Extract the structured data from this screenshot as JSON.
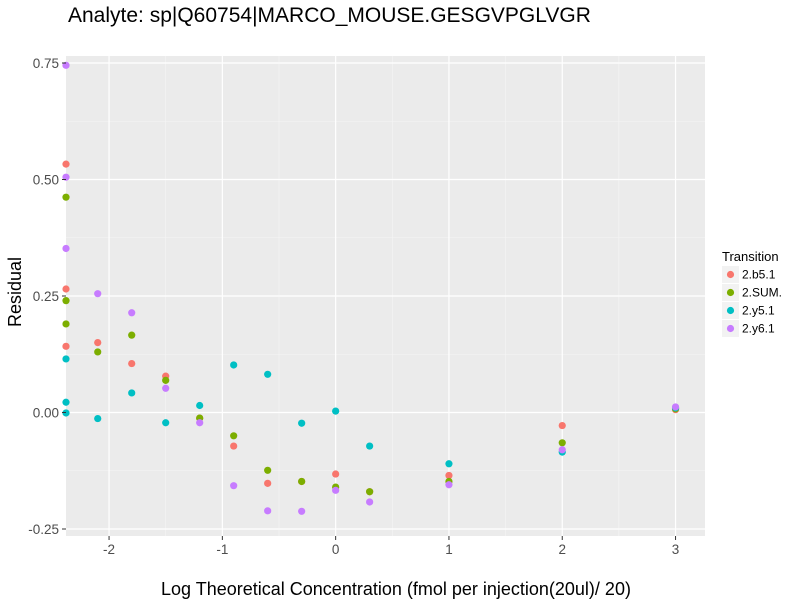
{
  "chart_data": {
    "type": "scatter",
    "title": "Analyte: sp|Q60754|MARCO_MOUSE.GESGVPGLVGR",
    "xlabel": "Log Theoretical Concentration (fmol per injection(20ul)/ 20)",
    "ylabel": "Residual",
    "xlim": [
      -2.38,
      3.26
    ],
    "ylim": [
      -0.265,
      0.765
    ],
    "x_ticks": [
      -2,
      -1,
      0,
      1,
      2,
      3
    ],
    "x_tick_labels": [
      "-2",
      "-1",
      "0",
      "1",
      "2",
      "3"
    ],
    "y_ticks": [
      -0.25,
      0,
      0.25,
      0.5,
      0.75
    ],
    "y_tick_labels": [
      "-0.25",
      "0.00",
      "0.25",
      "0.50",
      "0.75"
    ],
    "grid": true,
    "legend": {
      "title": "Transition",
      "placement": "right"
    },
    "series": [
      {
        "name": "2.b5.1",
        "color": "#F8766D",
        "points": [
          [
            -2.38,
            0.533
          ],
          [
            -2.38,
            0.265
          ],
          [
            -2.38,
            0.142
          ],
          [
            -2.1,
            0.15
          ],
          [
            -1.8,
            0.105
          ],
          [
            -1.5,
            0.078
          ],
          [
            -1.2,
            -0.012
          ],
          [
            -0.9,
            -0.072
          ],
          [
            -0.6,
            -0.152
          ],
          [
            -0.3,
            -0.148
          ],
          [
            0,
            -0.132
          ],
          [
            0.3,
            -0.17
          ],
          [
            1,
            -0.135
          ],
          [
            2,
            -0.028
          ],
          [
            3,
            0.006
          ]
        ]
      },
      {
        "name": "2.SUM.",
        "color": "#7CAE00",
        "points": [
          [
            -2.38,
            0.462
          ],
          [
            -2.38,
            0.24
          ],
          [
            -2.38,
            0.19
          ],
          [
            -2.1,
            0.13
          ],
          [
            -1.8,
            0.166
          ],
          [
            -1.5,
            0.069
          ],
          [
            -1.2,
            -0.012
          ],
          [
            -0.9,
            -0.05
          ],
          [
            -0.6,
            -0.124
          ],
          [
            -0.3,
            -0.148
          ],
          [
            0,
            -0.16
          ],
          [
            0.3,
            -0.17
          ],
          [
            1,
            -0.148
          ],
          [
            2,
            -0.065
          ],
          [
            3,
            0.008
          ]
        ]
      },
      {
        "name": "2.y5.1",
        "color": "#00BFC4",
        "points": [
          [
            -2.38,
            0.115
          ],
          [
            -2.38,
            0.022
          ],
          [
            -2.38,
            -0.001
          ],
          [
            -2.1,
            -0.013
          ],
          [
            -1.8,
            0.042
          ],
          [
            -1.5,
            -0.022
          ],
          [
            -1.2,
            0.015
          ],
          [
            -0.9,
            0.102
          ],
          [
            -0.6,
            0.082
          ],
          [
            -0.3,
            -0.023
          ],
          [
            0,
            0.003
          ],
          [
            0.3,
            -0.072
          ],
          [
            1,
            -0.11
          ],
          [
            2,
            -0.085
          ],
          [
            3,
            0.01
          ]
        ]
      },
      {
        "name": "2.y6.1",
        "color": "#C77CFF",
        "points": [
          [
            -2.38,
            0.745
          ],
          [
            -2.38,
            0.505
          ],
          [
            -2.38,
            0.352
          ],
          [
            -2.1,
            0.255
          ],
          [
            -1.8,
            0.214
          ],
          [
            -1.5,
            0.052
          ],
          [
            -1.2,
            -0.022
          ],
          [
            -0.9,
            -0.157
          ],
          [
            -0.6,
            -0.211
          ],
          [
            -0.3,
            -0.212
          ],
          [
            0,
            -0.167
          ],
          [
            0.3,
            -0.192
          ],
          [
            1,
            -0.155
          ],
          [
            2,
            -0.08
          ],
          [
            3,
            0.012
          ]
        ]
      }
    ]
  }
}
